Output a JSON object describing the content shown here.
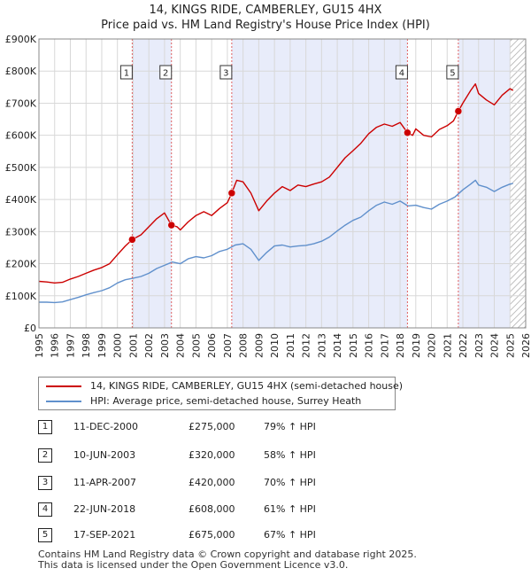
{
  "header": {
    "title": "14, KINGS RIDE, CAMBERLEY, GU15 4HX",
    "subtitle": "Price paid vs. HM Land Registry's House Price Index (HPI)"
  },
  "colors": {
    "property": "#cc0000",
    "hpi": "#6090cc",
    "shade": "#e8ecfa",
    "grid": "#d8d8d8",
    "marker_line": "#e06060"
  },
  "chart_data": {
    "type": "line",
    "title": "14, KINGS RIDE, CAMBERLEY, GU15 4HX",
    "subtitle": "Price paid vs. HM Land Registry's House Price Index (HPI)",
    "xlim": [
      1995,
      2026
    ],
    "ylim": [
      0,
      900000
    ],
    "x_ticks": [
      "1995",
      "1996",
      "1997",
      "1998",
      "1999",
      "2000",
      "2001",
      "2002",
      "2003",
      "2004",
      "2005",
      "2006",
      "2007",
      "2008",
      "2009",
      "2010",
      "2011",
      "2012",
      "2013",
      "2014",
      "2015",
      "2016",
      "2017",
      "2018",
      "2019",
      "2020",
      "2021",
      "2022",
      "2023",
      "2024",
      "2025",
      "2026"
    ],
    "y_ticks": [
      {
        "value": 0,
        "label": "£0"
      },
      {
        "value": 100000,
        "label": "£100K"
      },
      {
        "value": 200000,
        "label": "£200K"
      },
      {
        "value": 300000,
        "label": "£300K"
      },
      {
        "value": 400000,
        "label": "£400K"
      },
      {
        "value": 500000,
        "label": "£500K"
      },
      {
        "value": 600000,
        "label": "£600K"
      },
      {
        "value": 700000,
        "label": "£700K"
      },
      {
        "value": 800000,
        "label": "£800K"
      },
      {
        "value": 900000,
        "label": "£900K"
      }
    ],
    "shaded_ranges": [
      [
        2000.94,
        2003.44
      ],
      [
        2007.28,
        2018.47
      ],
      [
        2021.71,
        2025.0
      ]
    ],
    "hatched_from": 2025.0,
    "series": [
      {
        "name": "14, KINGS RIDE, CAMBERLEY, GU15 4HX (semi-detached house)",
        "color": "#cc0000",
        "points": [
          [
            1995.0,
            145000
          ],
          [
            1995.5,
            143000
          ],
          [
            1996.0,
            140000
          ],
          [
            1996.5,
            142000
          ],
          [
            1997.0,
            152000
          ],
          [
            1997.5,
            160000
          ],
          [
            1998.0,
            170000
          ],
          [
            1998.5,
            180000
          ],
          [
            1999.0,
            188000
          ],
          [
            1999.5,
            200000
          ],
          [
            2000.0,
            228000
          ],
          [
            2000.5,
            255000
          ],
          [
            2000.94,
            275000
          ],
          [
            2001.5,
            290000
          ],
          [
            2002.0,
            315000
          ],
          [
            2002.5,
            340000
          ],
          [
            2003.0,
            358000
          ],
          [
            2003.44,
            320000
          ],
          [
            2003.8,
            315000
          ],
          [
            2004.0,
            305000
          ],
          [
            2004.5,
            330000
          ],
          [
            2005.0,
            350000
          ],
          [
            2005.5,
            362000
          ],
          [
            2006.0,
            350000
          ],
          [
            2006.5,
            372000
          ],
          [
            2007.0,
            390000
          ],
          [
            2007.28,
            420000
          ],
          [
            2007.6,
            460000
          ],
          [
            2008.0,
            455000
          ],
          [
            2008.5,
            420000
          ],
          [
            2009.0,
            365000
          ],
          [
            2009.5,
            395000
          ],
          [
            2010.0,
            420000
          ],
          [
            2010.5,
            440000
          ],
          [
            2011.0,
            428000
          ],
          [
            2011.5,
            445000
          ],
          [
            2012.0,
            440000
          ],
          [
            2012.5,
            448000
          ],
          [
            2013.0,
            455000
          ],
          [
            2013.5,
            470000
          ],
          [
            2014.0,
            500000
          ],
          [
            2014.5,
            530000
          ],
          [
            2015.0,
            552000
          ],
          [
            2015.5,
            575000
          ],
          [
            2016.0,
            605000
          ],
          [
            2016.5,
            625000
          ],
          [
            2017.0,
            635000
          ],
          [
            2017.5,
            628000
          ],
          [
            2018.0,
            640000
          ],
          [
            2018.47,
            608000
          ],
          [
            2018.8,
            600000
          ],
          [
            2019.0,
            620000
          ],
          [
            2019.5,
            600000
          ],
          [
            2020.0,
            595000
          ],
          [
            2020.5,
            618000
          ],
          [
            2021.0,
            630000
          ],
          [
            2021.4,
            645000
          ],
          [
            2021.71,
            675000
          ],
          [
            2022.0,
            700000
          ],
          [
            2022.5,
            740000
          ],
          [
            2022.8,
            760000
          ],
          [
            2023.0,
            730000
          ],
          [
            2023.5,
            710000
          ],
          [
            2024.0,
            695000
          ],
          [
            2024.5,
            725000
          ],
          [
            2025.0,
            745000
          ],
          [
            2025.2,
            740000
          ]
        ]
      },
      {
        "name": "HPI: Average price, semi-detached house, Surrey Heath",
        "color": "#6090cc",
        "points": [
          [
            1995.0,
            80000
          ],
          [
            1995.5,
            80000
          ],
          [
            1996.0,
            79000
          ],
          [
            1996.5,
            81000
          ],
          [
            1997.0,
            88000
          ],
          [
            1997.5,
            95000
          ],
          [
            1998.0,
            103000
          ],
          [
            1998.5,
            110000
          ],
          [
            1999.0,
            116000
          ],
          [
            1999.5,
            125000
          ],
          [
            2000.0,
            140000
          ],
          [
            2000.5,
            150000
          ],
          [
            2001.0,
            155000
          ],
          [
            2001.5,
            160000
          ],
          [
            2002.0,
            170000
          ],
          [
            2002.5,
            185000
          ],
          [
            2003.0,
            195000
          ],
          [
            2003.5,
            205000
          ],
          [
            2004.0,
            200000
          ],
          [
            2004.5,
            215000
          ],
          [
            2005.0,
            222000
          ],
          [
            2005.5,
            218000
          ],
          [
            2006.0,
            225000
          ],
          [
            2006.5,
            238000
          ],
          [
            2007.0,
            245000
          ],
          [
            2007.5,
            258000
          ],
          [
            2008.0,
            262000
          ],
          [
            2008.5,
            245000
          ],
          [
            2009.0,
            210000
          ],
          [
            2009.5,
            235000
          ],
          [
            2010.0,
            255000
          ],
          [
            2010.5,
            258000
          ],
          [
            2011.0,
            252000
          ],
          [
            2011.5,
            255000
          ],
          [
            2012.0,
            257000
          ],
          [
            2012.5,
            262000
          ],
          [
            2013.0,
            270000
          ],
          [
            2013.5,
            283000
          ],
          [
            2014.0,
            302000
          ],
          [
            2014.5,
            320000
          ],
          [
            2015.0,
            335000
          ],
          [
            2015.5,
            345000
          ],
          [
            2016.0,
            365000
          ],
          [
            2016.5,
            382000
          ],
          [
            2017.0,
            392000
          ],
          [
            2017.5,
            385000
          ],
          [
            2018.0,
            395000
          ],
          [
            2018.5,
            380000
          ],
          [
            2019.0,
            382000
          ],
          [
            2019.5,
            375000
          ],
          [
            2020.0,
            370000
          ],
          [
            2020.5,
            385000
          ],
          [
            2021.0,
            395000
          ],
          [
            2021.5,
            408000
          ],
          [
            2022.0,
            430000
          ],
          [
            2022.5,
            448000
          ],
          [
            2022.8,
            460000
          ],
          [
            2023.0,
            445000
          ],
          [
            2023.5,
            438000
          ],
          [
            2024.0,
            425000
          ],
          [
            2024.5,
            438000
          ],
          [
            2025.0,
            448000
          ],
          [
            2025.2,
            450000
          ]
        ]
      }
    ],
    "sales": [
      {
        "label": "1",
        "x": 2000.94,
        "price": 275000,
        "date": "11-DEC-2000",
        "price_text": "£275,000",
        "hpi_text": "79% ↑ HPI"
      },
      {
        "label": "2",
        "x": 2003.44,
        "price": 320000,
        "date": "10-JUN-2003",
        "price_text": "£320,000",
        "hpi_text": "58% ↑ HPI"
      },
      {
        "label": "3",
        "x": 2007.28,
        "price": 420000,
        "date": "11-APR-2007",
        "price_text": "£420,000",
        "hpi_text": "70% ↑ HPI"
      },
      {
        "label": "4",
        "x": 2018.47,
        "price": 608000,
        "date": "22-JUN-2018",
        "price_text": "£608,000",
        "hpi_text": "61% ↑ HPI"
      },
      {
        "label": "5",
        "x": 2021.71,
        "price": 675000,
        "date": "17-SEP-2021",
        "price_text": "£675,000",
        "hpi_text": "67% ↑ HPI"
      }
    ],
    "legend": {
      "property": "14, KINGS RIDE, CAMBERLEY, GU15 4HX (semi-detached house)",
      "hpi": "HPI: Average price, semi-detached house, Surrey Heath"
    }
  },
  "footer": {
    "line1": "Contains HM Land Registry data © Crown copyright and database right 2025.",
    "line2": "This data is licensed under the Open Government Licence v3.0."
  }
}
